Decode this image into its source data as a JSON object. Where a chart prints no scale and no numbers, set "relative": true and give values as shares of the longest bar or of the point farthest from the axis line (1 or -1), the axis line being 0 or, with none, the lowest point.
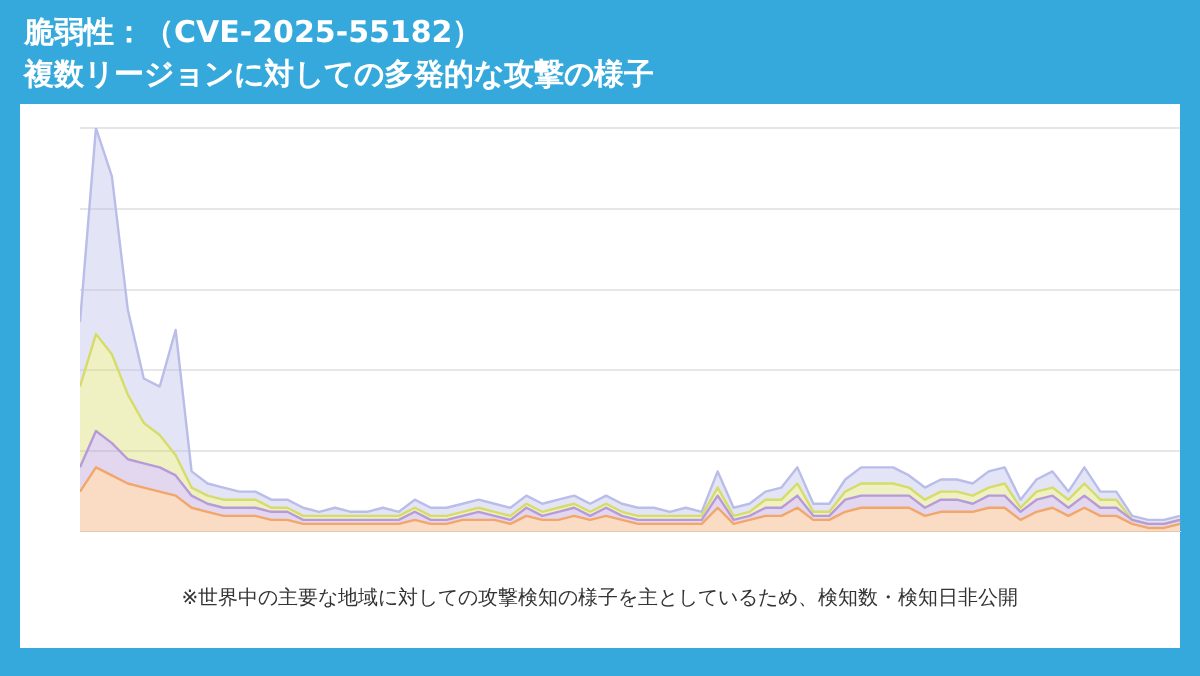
{
  "chart_data": {
    "type": "area",
    "title": "脆弱性：（CVE-2025-55182）",
    "subtitle": "複数リージョンに対しての多発的な攻撃の様子",
    "annotations": [
      "※世界中の主要な地域に対しての攻撃検知の様子を主としているため、検知数・検知日非公開"
    ],
    "relative": true,
    "stacked": true,
    "grid": "y",
    "legend": false,
    "marker": "none",
    "categories": [
      null,
      null,
      null,
      null,
      null,
      null,
      null,
      null,
      null,
      null,
      null,
      null,
      null,
      null,
      null,
      null,
      null,
      null,
      null,
      null,
      null,
      null,
      null,
      null,
      null,
      null,
      null,
      null,
      null,
      null,
      null,
      null,
      null,
      null,
      null,
      null,
      null,
      null,
      null,
      null,
      null,
      null,
      null,
      null,
      null,
      null,
      null,
      null,
      null,
      null,
      null,
      null,
      null,
      null,
      null,
      null,
      null,
      null,
      null,
      null,
      null,
      null,
      null,
      null,
      null,
      null,
      null,
      null,
      null,
      null
    ],
    "series": [
      {
        "color": "#f2a66a",
        "values": [
          0.1,
          0.16,
          0.14,
          0.12,
          0.11,
          0.1,
          0.09,
          0.06,
          0.05,
          0.04,
          0.04,
          0.04,
          0.03,
          0.03,
          0.02,
          0.02,
          0.02,
          0.02,
          0.02,
          0.02,
          0.02,
          0.03,
          0.02,
          0.02,
          0.03,
          0.03,
          0.03,
          0.02,
          0.04,
          0.03,
          0.03,
          0.04,
          0.03,
          0.04,
          0.03,
          0.02,
          0.02,
          0.02,
          0.02,
          0.02,
          0.06,
          0.02,
          0.03,
          0.04,
          0.04,
          0.06,
          0.03,
          0.03,
          0.05,
          0.06,
          0.06,
          0.06,
          0.06,
          0.04,
          0.05,
          0.05,
          0.05,
          0.06,
          0.06,
          0.03,
          0.05,
          0.06,
          0.04,
          0.06,
          0.04,
          0.04,
          0.02,
          0.01,
          0.01,
          0.02
        ]
      },
      {
        "color": "#b79ad8",
        "values": [
          0.06,
          0.09,
          0.08,
          0.06,
          0.06,
          0.06,
          0.05,
          0.03,
          0.02,
          0.02,
          0.02,
          0.02,
          0.02,
          0.02,
          0.01,
          0.01,
          0.01,
          0.01,
          0.01,
          0.01,
          0.01,
          0.02,
          0.01,
          0.01,
          0.01,
          0.02,
          0.01,
          0.01,
          0.02,
          0.01,
          0.02,
          0.02,
          0.01,
          0.02,
          0.01,
          0.01,
          0.01,
          0.01,
          0.01,
          0.01,
          0.03,
          0.01,
          0.01,
          0.02,
          0.02,
          0.03,
          0.01,
          0.01,
          0.03,
          0.03,
          0.03,
          0.03,
          0.03,
          0.02,
          0.03,
          0.03,
          0.02,
          0.03,
          0.03,
          0.02,
          0.03,
          0.03,
          0.02,
          0.03,
          0.02,
          0.02,
          0.01,
          0.01,
          0.01,
          0.01
        ]
      },
      {
        "color": "#d6dc6a",
        "values": [
          0.2,
          0.24,
          0.22,
          0.16,
          0.1,
          0.08,
          0.05,
          0.02,
          0.02,
          0.02,
          0.02,
          0.02,
          0.01,
          0.01,
          0.01,
          0.01,
          0.01,
          0.01,
          0.01,
          0.01,
          0.01,
          0.01,
          0.01,
          0.01,
          0.01,
          0.01,
          0.01,
          0.01,
          0.01,
          0.01,
          0.01,
          0.01,
          0.01,
          0.01,
          0.01,
          0.01,
          0.01,
          0.01,
          0.01,
          0.01,
          0.02,
          0.01,
          0.01,
          0.02,
          0.02,
          0.03,
          0.01,
          0.01,
          0.02,
          0.03,
          0.03,
          0.03,
          0.02,
          0.02,
          0.02,
          0.02,
          0.02,
          0.02,
          0.03,
          0.01,
          0.02,
          0.02,
          0.02,
          0.03,
          0.02,
          0.02,
          0.0,
          0.0,
          0.0,
          0.0
        ]
      },
      {
        "color": "#b9bde8",
        "values": [
          0.16,
          0.51,
          0.44,
          0.21,
          0.11,
          0.12,
          0.31,
          0.04,
          0.03,
          0.03,
          0.02,
          0.02,
          0.02,
          0.02,
          0.02,
          0.01,
          0.02,
          0.01,
          0.01,
          0.02,
          0.01,
          0.02,
          0.02,
          0.02,
          0.02,
          0.02,
          0.02,
          0.02,
          0.02,
          0.02,
          0.02,
          0.02,
          0.02,
          0.02,
          0.02,
          0.02,
          0.02,
          0.01,
          0.02,
          0.01,
          0.04,
          0.02,
          0.02,
          0.02,
          0.03,
          0.04,
          0.02,
          0.02,
          0.03,
          0.04,
          0.04,
          0.04,
          0.03,
          0.03,
          0.03,
          0.03,
          0.03,
          0.04,
          0.04,
          0.02,
          0.03,
          0.04,
          0.02,
          0.04,
          0.02,
          0.02,
          0.01,
          0.01,
          0.01,
          0.01
        ]
      }
    ]
  }
}
